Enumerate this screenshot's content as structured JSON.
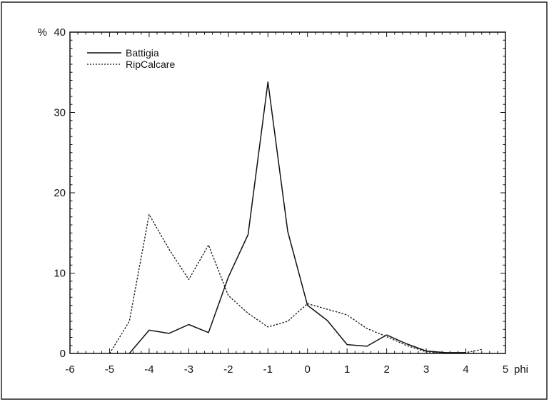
{
  "chart_data": {
    "type": "line",
    "xlabel": "phi",
    "ylabel": "%",
    "xlim": [
      -6,
      5
    ],
    "ylim": [
      0,
      40
    ],
    "x_ticks": [
      -6,
      -5,
      -4,
      -3,
      -2,
      -1,
      0,
      1,
      2,
      3,
      4,
      5
    ],
    "x_tick_labels": [
      "-6",
      "-5",
      "-4",
      "-3",
      "-2",
      "-1",
      "0",
      "1",
      "2",
      "3",
      "4",
      "5"
    ],
    "y_ticks": [
      0,
      10,
      20,
      30,
      40
    ],
    "y_tick_labels": [
      "0",
      "10",
      "20",
      "30",
      "40"
    ],
    "grid": false,
    "legend_position": "top-left",
    "series": [
      {
        "name": "Battigia",
        "line_style": "solid",
        "color": "#111111",
        "x": [
          -4.5,
          -4,
          -3.5,
          -3,
          -2.5,
          -2,
          -1.5,
          -1,
          -0.5,
          0,
          0.5,
          1,
          1.5,
          2,
          2.5,
          3,
          3.5,
          4
        ],
        "y": [
          0,
          2.9,
          2.5,
          3.6,
          2.6,
          9.5,
          14.8,
          33.8,
          15.2,
          6.0,
          4.1,
          1.1,
          0.9,
          2.3,
          1.2,
          0.3,
          0.1,
          0.1
        ]
      },
      {
        "name": "RipCalcare",
        "line_style": "dashed",
        "color": "#111111",
        "x": [
          -5,
          -4.5,
          -4,
          -3.5,
          -3,
          -2.5,
          -2,
          -1.5,
          -1,
          -0.5,
          0,
          0.5,
          1,
          1.5,
          2,
          2.5,
          3,
          3.5,
          4,
          4.4
        ],
        "y": [
          0,
          4.0,
          17.3,
          13.0,
          9.2,
          13.5,
          7.2,
          5.0,
          3.3,
          4.0,
          6.2,
          5.5,
          4.8,
          3.1,
          2.1,
          1.0,
          0.2,
          0.1,
          0.1,
          0.5
        ]
      }
    ]
  }
}
